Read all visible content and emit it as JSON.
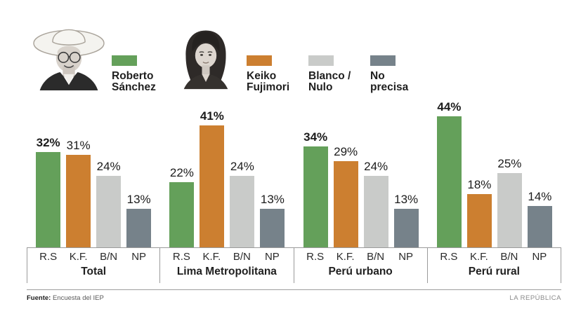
{
  "legend": {
    "items": [
      {
        "label": "Roberto\nSánchez",
        "color": "#64a05a",
        "portrait": "roberto-sanchez"
      },
      {
        "label": "Keiko\nFujimori",
        "color": "#cc7f30",
        "portrait": "keiko-fujimori"
      },
      {
        "label": "Blanco /\nNulo",
        "color": "#c9cbc9"
      },
      {
        "label": "No\nprecisa",
        "color": "#76828a"
      }
    ]
  },
  "chart_data": {
    "type": "bar",
    "unit": "%",
    "series_keys": [
      "R.S",
      "K.F.",
      "B/N",
      "NP"
    ],
    "series_names": [
      "Roberto Sánchez",
      "Keiko Fujimori",
      "Blanco / Nulo",
      "No precisa"
    ],
    "colors": [
      "#64a05a",
      "#cc7f30",
      "#c9cbc9",
      "#76828a"
    ],
    "ylim": [
      0,
      50
    ],
    "grid": false,
    "legend_position": "top",
    "groups": [
      {
        "label": "Total",
        "values": [
          32,
          31,
          24,
          13
        ],
        "value_labels": [
          "32%",
          "31%",
          "24%",
          "13%"
        ],
        "leader_index": 0
      },
      {
        "label": "Lima Metropolitana",
        "values": [
          22,
          41,
          24,
          13
        ],
        "value_labels": [
          "22%",
          "41%",
          "24%",
          "13%"
        ],
        "leader_index": 1
      },
      {
        "label": "Perú urbano",
        "values": [
          34,
          29,
          24,
          13
        ],
        "value_labels": [
          "34%",
          "29%",
          "24%",
          "13%"
        ],
        "leader_index": 0
      },
      {
        "label": "Perú rural",
        "values": [
          44,
          18,
          25,
          14
        ],
        "value_labels": [
          "44%",
          "18%",
          "25%",
          "14%"
        ],
        "leader_index": 0
      }
    ]
  },
  "footer": {
    "source_label": "Fuente:",
    "source_text": "Encuesta del IEP",
    "brand": "LA REPÚBLICA"
  }
}
